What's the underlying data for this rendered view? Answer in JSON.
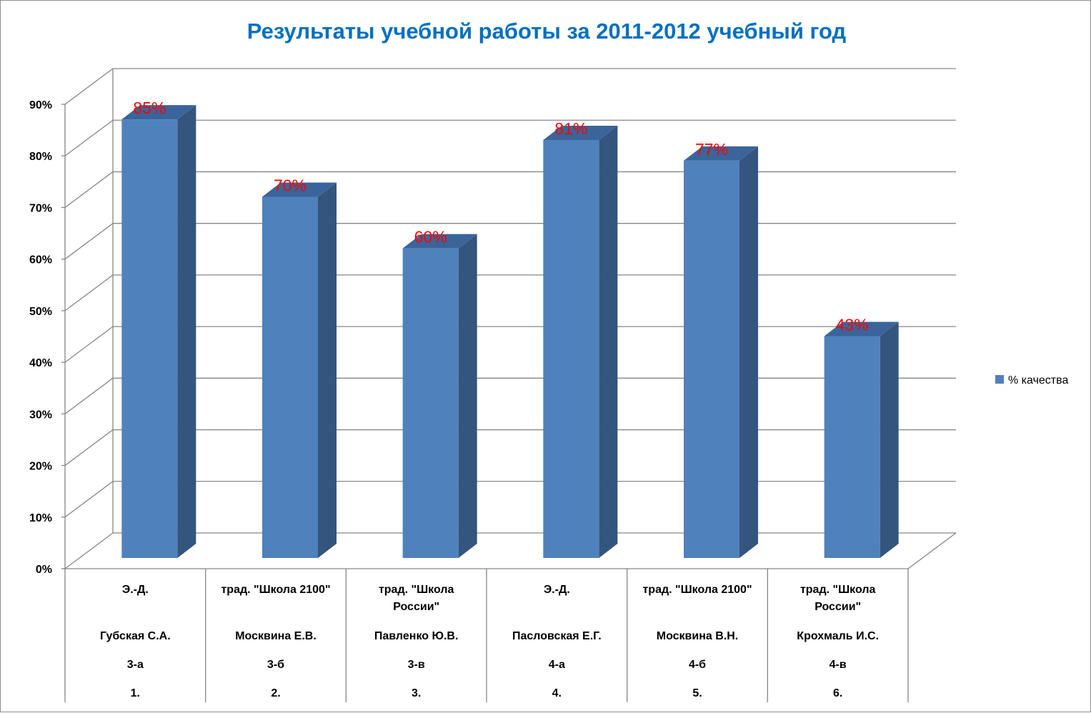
{
  "chart_data": {
    "type": "bar",
    "title": "Результаты учебной работы за 2011-2012 учебный год",
    "xlabel": "",
    "ylabel": "",
    "ylim": [
      0,
      0.9
    ],
    "y_ticks": [
      "0%",
      "10%",
      "20%",
      "30%",
      "40%",
      "50%",
      "60%",
      "70%",
      "80%",
      "90%"
    ],
    "grid": true,
    "three_d": true,
    "legend_position": "right",
    "colors": {
      "bar_front": "#4f81bd",
      "bar_side": "#34557d",
      "bar_top": "#3b649a",
      "data_label": "#ff0000",
      "title": "#0070c0"
    },
    "categories": [
      {
        "program": [
          "Э.-Д."
        ],
        "teacher": "Губская С.А.",
        "class": "3-а",
        "number": "1."
      },
      {
        "program": [
          "трад. \"Школа 2100\""
        ],
        "teacher": "Москвина Е.В.",
        "class": "3-б",
        "number": "2."
      },
      {
        "program": [
          "трад. \"Школа",
          "России\""
        ],
        "teacher": "Павленко Ю.В.",
        "class": "3-в",
        "number": "3."
      },
      {
        "program": [
          "Э.-Д."
        ],
        "teacher": "Пасловская Е.Г.",
        "class": "4-а",
        "number": "4."
      },
      {
        "program": [
          "трад. \"Школа 2100\""
        ],
        "teacher": "Москвина В.Н.",
        "class": "4-б",
        "number": "5."
      },
      {
        "program": [
          "трад. \"Школа",
          "России\""
        ],
        "teacher": "Крохмаль И.С.",
        "class": "4-в",
        "number": "6."
      }
    ],
    "series": [
      {
        "name": "% качества",
        "values": [
          0.85,
          0.7,
          0.6,
          0.81,
          0.77,
          0.43
        ],
        "labels": [
          "85%",
          "70%",
          "60%",
          "81%",
          "77%",
          "43%"
        ]
      }
    ]
  }
}
